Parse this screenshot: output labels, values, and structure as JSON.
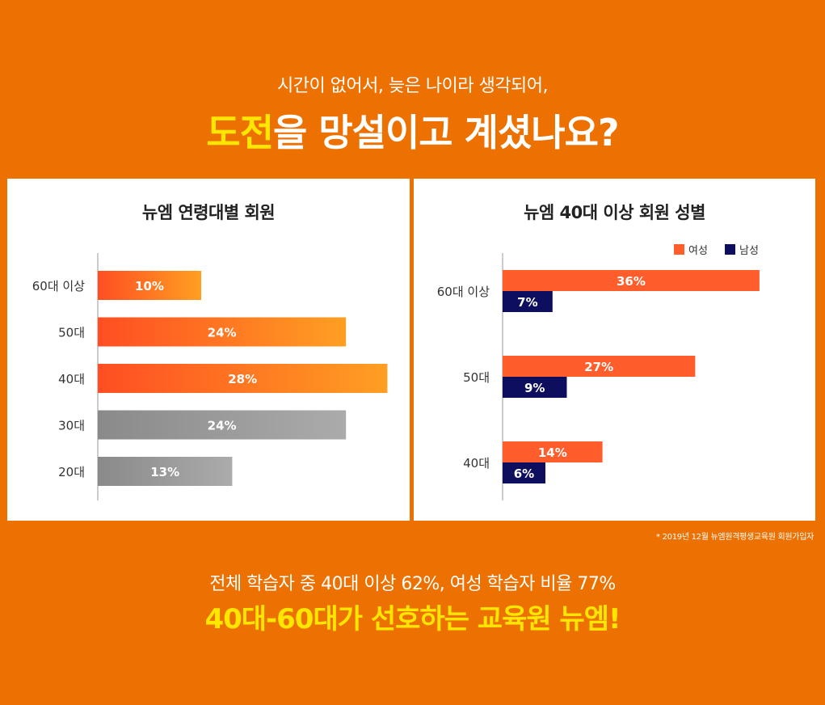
{
  "header": {
    "subtitle": "시간이 없어서, 늦은 나이라 생각되어,",
    "headline_highlight": "도전",
    "headline_rest": "을 망설이고 계셨나요?"
  },
  "colors": {
    "background": "#ec7100",
    "highlight": "#ffe600",
    "female": "#ff5e2c",
    "male": "#0e0e5e",
    "orange_gradient_start": "#ff4e22",
    "orange_gradient_end": "#ff9f22",
    "gray_gradient_start": "#8a8a8a",
    "gray_gradient_end": "#ababab"
  },
  "chart_data": [
    {
      "type": "bar",
      "orientation": "horizontal",
      "title": "뉴엠 연령대별 회원",
      "categories": [
        "60대 이상",
        "50대",
        "40대",
        "30대",
        "20대"
      ],
      "values": [
        10,
        24,
        28,
        24,
        13
      ],
      "value_labels": [
        "10%",
        "24%",
        "28%",
        "24%",
        "13%"
      ],
      "highlighted": [
        true,
        true,
        true,
        false,
        false
      ],
      "xlim": [
        0,
        30
      ],
      "grid": false
    },
    {
      "type": "bar",
      "orientation": "horizontal",
      "title": "뉴엠 40대 이상 회원 성별",
      "categories": [
        "60대 이상",
        "50대",
        "40대"
      ],
      "series": [
        {
          "name": "여성",
          "values": [
            36,
            27,
            14
          ],
          "labels": [
            "36%",
            "27%",
            "14%"
          ]
        },
        {
          "name": "남성",
          "values": [
            7,
            9,
            6
          ],
          "labels": [
            "7%",
            "9%",
            "6%"
          ]
        }
      ],
      "legend": "top-right",
      "xlim": [
        0,
        38
      ],
      "grid": false
    }
  ],
  "footnote": "* 2019년 12월 뉴엠원격평생교육원 회원가입자",
  "footer": {
    "summary": "전체 학습자 중  40대 이상 62%, 여성 학습자 비율 77%",
    "cta": "40대-60대가 선호하는 교육원 뉴엠!"
  }
}
